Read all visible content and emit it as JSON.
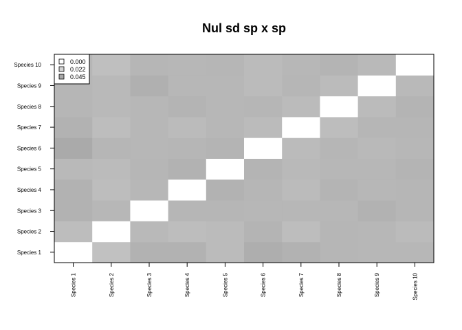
{
  "chart_data": {
    "type": "heatmap",
    "title": "Nul sd sp x sp",
    "xlabel": "",
    "ylabel": "",
    "x_categories": [
      "Species 1",
      "Species 2",
      "Species 3",
      "Species 4",
      "Species 5",
      "Species 6",
      "Species 7",
      "Species 8",
      "Species 9",
      "Species 10"
    ],
    "y_categories": [
      "Species 1",
      "Species 2",
      "Species 3",
      "Species 4",
      "Species 5",
      "Species 6",
      "Species 7",
      "Species 8",
      "Species 9",
      "Species 10"
    ],
    "color_scale": {
      "low": "#ffffff",
      "high": "#a8a8a8",
      "max_value": 0.045
    },
    "values": [
      [
        0.0,
        0.034,
        0.04,
        0.04,
        0.036,
        0.044,
        0.04,
        0.038,
        0.038,
        0.038
      ],
      [
        0.032,
        0.0,
        0.037,
        0.034,
        0.035,
        0.038,
        0.034,
        0.036,
        0.036,
        0.033
      ],
      [
        0.04,
        0.036,
        0.0,
        0.037,
        0.038,
        0.037,
        0.037,
        0.037,
        0.041,
        0.038
      ],
      [
        0.04,
        0.034,
        0.038,
        0.0,
        0.04,
        0.038,
        0.035,
        0.039,
        0.037,
        0.037
      ],
      [
        0.035,
        0.035,
        0.038,
        0.04,
        0.0,
        0.039,
        0.037,
        0.037,
        0.037,
        0.038
      ],
      [
        0.042,
        0.039,
        0.037,
        0.038,
        0.039,
        0.0,
        0.035,
        0.038,
        0.035,
        0.035
      ],
      [
        0.04,
        0.034,
        0.037,
        0.035,
        0.036,
        0.035,
        0.0,
        0.035,
        0.038,
        0.037
      ],
      [
        0.038,
        0.038,
        0.037,
        0.039,
        0.037,
        0.038,
        0.034,
        0.0,
        0.035,
        0.039
      ],
      [
        0.037,
        0.037,
        0.04,
        0.037,
        0.037,
        0.036,
        0.038,
        0.035,
        0.0,
        0.036
      ],
      [
        0.037,
        0.035,
        0.038,
        0.038,
        0.039,
        0.037,
        0.038,
        0.039,
        0.036,
        0.0
      ]
    ],
    "legend": {
      "position": "top-left",
      "entries": [
        {
          "label": "0.000",
          "value": 0.0
        },
        {
          "label": "0.022",
          "value": 0.022
        },
        {
          "label": "0.045",
          "value": 0.045
        }
      ]
    }
  }
}
